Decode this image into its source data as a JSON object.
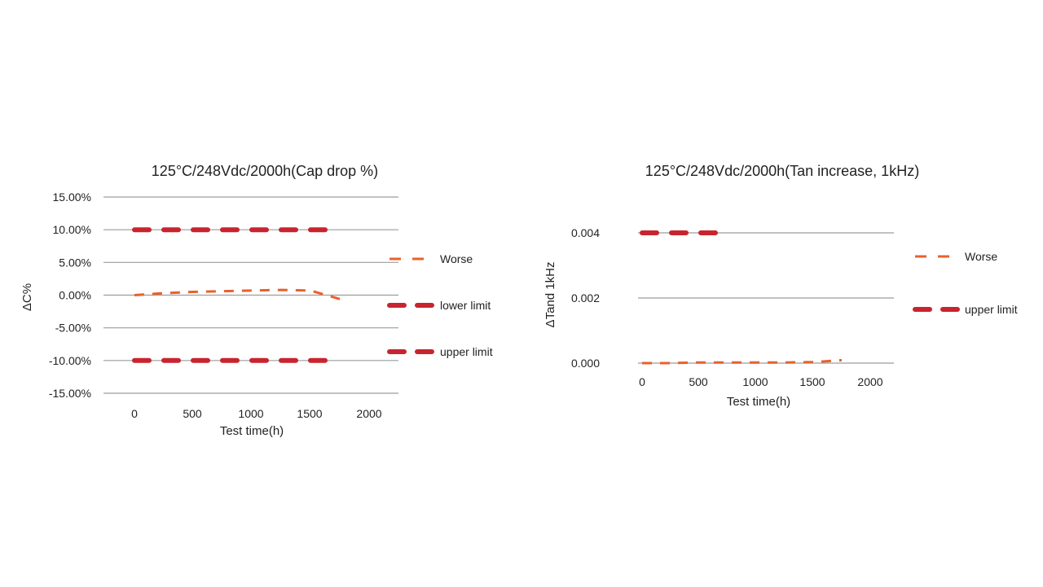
{
  "chart_data": [
    {
      "type": "line",
      "title": "125°C/248Vdc/2000h(Cap drop %)",
      "xlabel": "Test time(h)",
      "ylabel": "ΔC%",
      "x": [
        0,
        250,
        500,
        750,
        1000,
        1250,
        1500,
        1750
      ],
      "x_ticks": [
        "0",
        "500",
        "1000",
        "1500",
        "2000"
      ],
      "y_ticks": [
        "15.00%",
        "10.00%",
        "5.00%",
        "0.00%",
        "-5.00%",
        "-10.00%",
        "-15.00%"
      ],
      "ylim": [
        -15,
        15
      ],
      "grid": true,
      "legend_position": "right",
      "series": [
        {
          "name": "Worse",
          "color": "#e8612c",
          "values": [
            0.0,
            0.3,
            0.5,
            0.6,
            0.7,
            0.8,
            0.7,
            -0.6
          ]
        },
        {
          "name": "lower limit",
          "color": "#c8242f",
          "values": [
            10,
            10,
            10,
            10,
            10,
            10,
            10,
            10
          ]
        },
        {
          "name": "upper limit",
          "color": "#c8242f",
          "values": [
            -10,
            -10,
            -10,
            -10,
            -10,
            -10,
            -10,
            -10
          ]
        }
      ]
    },
    {
      "type": "line",
      "title": "125°C/248Vdc/2000h(Tan increase, 1kHz)",
      "xlabel": "Test time(h)",
      "ylabel": "ΔTand 1kHz",
      "x_ticks": [
        "0",
        "500",
        "1000",
        "1500",
        "2000"
      ],
      "y_ticks": [
        "0.004",
        "0.002",
        "0.000"
      ],
      "ylim": [
        0,
        0.004
      ],
      "grid": true,
      "legend_position": "right",
      "series": [
        {
          "name": "Worse",
          "color": "#e8612c",
          "x": [
            0,
            250,
            500,
            750,
            1000,
            1250,
            1500,
            1750
          ],
          "values": [
            0.0,
            0.0,
            2e-05,
            2e-05,
            2e-05,
            2e-05,
            3e-05,
            9e-05
          ]
        },
        {
          "name": "upper limit",
          "color": "#c8242f",
          "x": [
            0,
            250,
            500,
            750
          ],
          "values": [
            0.004,
            0.004,
            0.004,
            0.004
          ]
        }
      ]
    }
  ]
}
